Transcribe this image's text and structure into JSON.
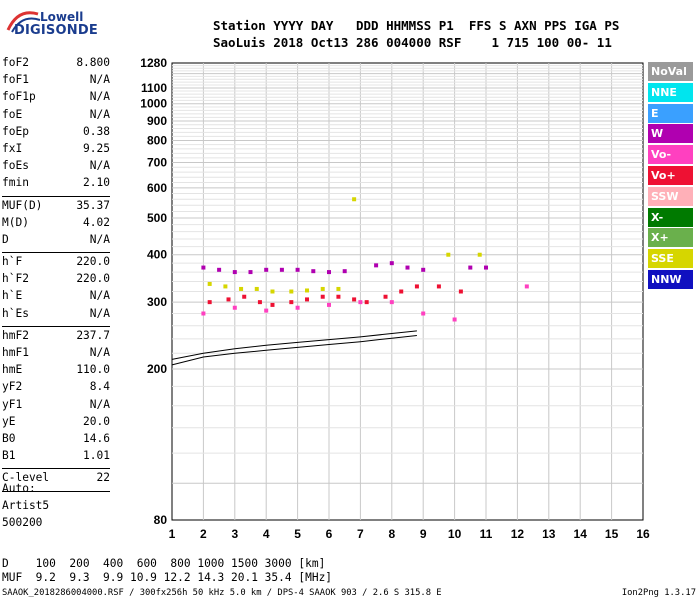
{
  "logo": {
    "line1": "Lowell",
    "line2": "DIGISONDE"
  },
  "header": {
    "row1": "Station YYYY DAY   DDD HHMMSS P1  FFS S AXN PPS IGA PS",
    "row2": "SaoLuis 2018 Oct13 286 004000 RSF    1 715 100 00- 11"
  },
  "params": [
    {
      "name": "foF2",
      "value": "8.800"
    },
    {
      "name": "foF1",
      "value": "N/A"
    },
    {
      "name": "foF1p",
      "value": "N/A"
    },
    {
      "name": "foE",
      "value": "N/A"
    },
    {
      "name": "foEp",
      "value": "0.38"
    },
    {
      "name": "fxI",
      "value": "9.25"
    },
    {
      "name": "foEs",
      "value": "N/A"
    },
    {
      "name": "fmin",
      "value": "2.10"
    },
    {
      "sep": true
    },
    {
      "name": "MUF(D)",
      "value": "35.37"
    },
    {
      "name": "M(D)",
      "value": "4.02"
    },
    {
      "name": "D",
      "value": "N/A"
    },
    {
      "sep": true
    },
    {
      "name": "h`F",
      "value": "220.0"
    },
    {
      "name": "h`F2",
      "value": "220.0"
    },
    {
      "name": "h`E",
      "value": "N/A"
    },
    {
      "name": "h`Es",
      "value": "N/A"
    },
    {
      "sep": true
    },
    {
      "name": "hmF2",
      "value": "237.7"
    },
    {
      "name": "hmF1",
      "value": "N/A"
    },
    {
      "name": "hmE",
      "value": "110.0"
    },
    {
      "name": "yF2",
      "value": "8.4"
    },
    {
      "name": "yF1",
      "value": "N/A"
    },
    {
      "name": "yE",
      "value": "20.0"
    },
    {
      "name": "B0",
      "value": "14.6"
    },
    {
      "name": "B1",
      "value": "1.01"
    },
    {
      "sep": true
    },
    {
      "name": "C-level",
      "value": "22"
    },
    {
      "sep": true
    }
  ],
  "auto_block": [
    "Auto:",
    "Artist5",
    "500200"
  ],
  "legend": [
    {
      "label": "NoVal",
      "color": "#9a9a9a"
    },
    {
      "label": "NNE",
      "color": "#00e5ee"
    },
    {
      "label": "E",
      "color": "#3aa0ff"
    },
    {
      "label": "W",
      "color": "#b000b0"
    },
    {
      "label": "Vo-",
      "color": "#ff40c0"
    },
    {
      "label": "Vo+",
      "color": "#ee1133"
    },
    {
      "label": "SSW",
      "color": "#ffb0b8"
    },
    {
      "label": "X-",
      "color": "#007a00"
    },
    {
      "label": "X+",
      "color": "#6ab04c"
    },
    {
      "label": "SSE",
      "color": "#d6d600"
    },
    {
      "label": "NNW",
      "color": "#1010c0"
    }
  ],
  "muf_table": {
    "row1": "D    100  200  400  600  800 1000 1500 3000 [km]",
    "row2": "MUF  9.2  9.3  9.9 10.9 12.2 14.3 20.1 35.4 [MHz]"
  },
  "footer": {
    "left": "SAAOK_2018286004000.RSF / 300fx256h 50 kHz 5.0 km / DPS-4 SAAOK 903 / 2.6 S 315.8 E",
    "right": "Ion2Png 1.3.17"
  },
  "chart_data": {
    "type": "scatter",
    "title": "",
    "xlabel": "",
    "ylabel": "",
    "xlim": [
      1,
      16
    ],
    "ylim": [
      80,
      1280
    ],
    "x_ticks": [
      1,
      2,
      3,
      4,
      5,
      6,
      7,
      8,
      9,
      10,
      11,
      12,
      13,
      14,
      15,
      16
    ],
    "y_ticks": [
      80,
      200,
      300,
      400,
      500,
      600,
      700,
      800,
      900,
      1000,
      1100,
      1280
    ],
    "y_scale": "log",
    "grid": true,
    "legend_position": "right",
    "series": [
      {
        "color": "#b000b0",
        "points": [
          [
            2.0,
            370
          ],
          [
            2.5,
            365
          ],
          [
            3.0,
            360
          ],
          [
            3.5,
            360
          ],
          [
            4.0,
            365
          ],
          [
            4.5,
            365
          ],
          [
            5.0,
            365
          ],
          [
            5.5,
            362
          ],
          [
            6.0,
            360
          ],
          [
            6.5,
            362
          ],
          [
            7.5,
            375
          ],
          [
            8.0,
            380
          ],
          [
            8.5,
            370
          ],
          [
            9.0,
            365
          ],
          [
            10.5,
            370
          ],
          [
            11.0,
            370
          ]
        ]
      },
      {
        "color": "#ee1133",
        "points": [
          [
            2.2,
            300
          ],
          [
            2.8,
            305
          ],
          [
            3.3,
            310
          ],
          [
            3.8,
            300
          ],
          [
            4.2,
            295
          ],
          [
            4.8,
            300
          ],
          [
            5.3,
            305
          ],
          [
            5.8,
            310
          ],
          [
            6.3,
            310
          ],
          [
            6.8,
            305
          ],
          [
            7.2,
            300
          ],
          [
            7.8,
            310
          ],
          [
            8.3,
            320
          ],
          [
            8.8,
            330
          ],
          [
            9.5,
            330
          ],
          [
            10.2,
            320
          ]
        ]
      },
      {
        "color": "#d6d600",
        "points": [
          [
            2.2,
            335
          ],
          [
            2.7,
            330
          ],
          [
            3.2,
            325
          ],
          [
            3.7,
            325
          ],
          [
            4.2,
            320
          ],
          [
            4.8,
            320
          ],
          [
            5.3,
            322
          ],
          [
            5.8,
            325
          ],
          [
            6.3,
            325
          ],
          [
            9.8,
            400
          ],
          [
            10.8,
            400
          ],
          [
            6.8,
            560
          ]
        ]
      },
      {
        "color": "#ff40c0",
        "points": [
          [
            2.0,
            280
          ],
          [
            3.0,
            290
          ],
          [
            4.0,
            285
          ],
          [
            5.0,
            290
          ],
          [
            6.0,
            295
          ],
          [
            7.0,
            300
          ],
          [
            8.0,
            300
          ],
          [
            9.0,
            280
          ],
          [
            10.0,
            270
          ],
          [
            12.3,
            330
          ]
        ]
      }
    ],
    "trace_lines": [
      {
        "color": "#000",
        "points": [
          [
            1.0,
            205
          ],
          [
            2.0,
            215
          ],
          [
            3.0,
            220
          ],
          [
            4.0,
            224
          ],
          [
            5.0,
            228
          ],
          [
            6.0,
            232
          ],
          [
            7.0,
            236
          ],
          [
            8.0,
            241
          ],
          [
            8.8,
            245
          ]
        ]
      },
      {
        "color": "#000",
        "points": [
          [
            1.0,
            212
          ],
          [
            2.0,
            220
          ],
          [
            3.0,
            226
          ],
          [
            4.0,
            231
          ],
          [
            5.0,
            235
          ],
          [
            6.0,
            239
          ],
          [
            7.0,
            243
          ],
          [
            8.0,
            248
          ],
          [
            8.8,
            252
          ]
        ]
      }
    ]
  }
}
